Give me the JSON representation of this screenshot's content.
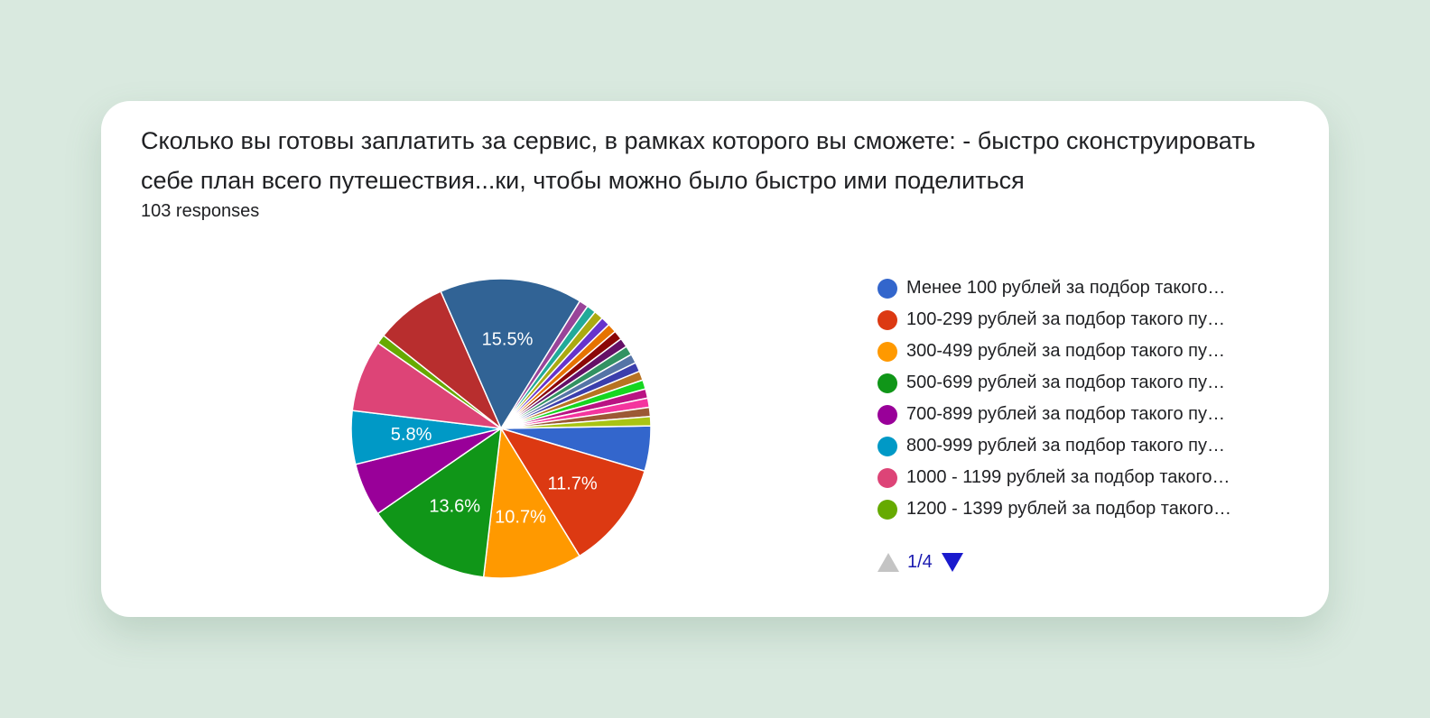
{
  "card": {
    "title": "Сколько вы готовы заплатить за сервис, в рамках которого вы сможете:  - быстро сконструировать себе план всего путешествия...ки, чтобы можно было быстро ими поделиться",
    "responses": "103 responses"
  },
  "pager": {
    "page": "1/4"
  },
  "chart_data": {
    "type": "pie",
    "title": "Сколько вы готовы заплатить за сервис, в рамках которого вы сможете:  - быстро сконструировать себе план всего путешествия...ки, чтобы можно было быстро ими поделиться",
    "total_responses": 103,
    "legend_position": "right",
    "legend_visible": [
      "Менее 100 рублей за подбор такого…",
      "100-299 рублей за подбор такого пу…",
      "300-499 рублей за подбор такого пу…",
      "500-699 рублей за подбор такого пу…",
      "700-899 рублей за подбор такого пу…",
      "800-999 рублей за подбор такого пу…",
      "1000 - 1199 рублей за подбор такого…",
      "1200 - 1399 рублей за подбор такого…"
    ],
    "slices": [
      {
        "value": 4.9,
        "color": "#3366cc"
      },
      {
        "value": 11.7,
        "label": "11.7%",
        "color": "#dc3912"
      },
      {
        "value": 10.7,
        "label": "10.7%",
        "color": "#ff9900"
      },
      {
        "value": 13.6,
        "label": "13.6%",
        "color": "#109618"
      },
      {
        "value": 5.8,
        "color": "#990099"
      },
      {
        "value": 5.8,
        "label": "5.8%",
        "color": "#0099c6"
      },
      {
        "value": 7.8,
        "color": "#dd4477"
      },
      {
        "value": 1.0,
        "color": "#66aa00"
      },
      {
        "value": 7.8,
        "color": "#b82e2e"
      },
      {
        "value": 15.5,
        "label": "15.5%",
        "color": "#316395"
      },
      {
        "value": 1.0,
        "color": "#994499"
      },
      {
        "value": 1.0,
        "color": "#22aa99"
      },
      {
        "value": 1.0,
        "color": "#aaaa11"
      },
      {
        "value": 1.0,
        "color": "#6633cc"
      },
      {
        "value": 1.0,
        "color": "#e67300"
      },
      {
        "value": 1.0,
        "color": "#8b0707"
      },
      {
        "value": 1.0,
        "color": "#651067"
      },
      {
        "value": 1.0,
        "color": "#329262"
      },
      {
        "value": 1.0,
        "color": "#5574a6"
      },
      {
        "value": 1.0,
        "color": "#3b3eac"
      },
      {
        "value": 1.0,
        "color": "#b77322"
      },
      {
        "value": 1.0,
        "color": "#16d620"
      },
      {
        "value": 1.0,
        "color": "#b91383"
      },
      {
        "value": 1.0,
        "color": "#f4359e"
      },
      {
        "value": 1.0,
        "color": "#9c5935"
      },
      {
        "value": 1.0,
        "color": "#a9c413"
      }
    ]
  }
}
